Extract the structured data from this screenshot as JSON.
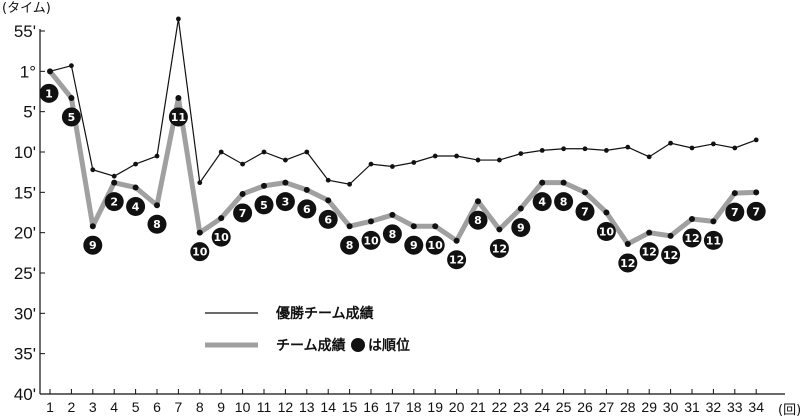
{
  "chart_data": {
    "type": "line",
    "ylabel": "(タイム)",
    "xlabel": "(回)",
    "x": [
      1,
      2,
      3,
      4,
      5,
      6,
      7,
      8,
      9,
      10,
      11,
      12,
      13,
      14,
      15,
      16,
      17,
      18,
      19,
      20,
      21,
      22,
      23,
      24,
      25,
      26,
      27,
      28,
      29,
      30,
      31,
      32,
      33,
      34
    ],
    "xtick_labels": [
      "1",
      "2",
      "3",
      "4",
      "5",
      "6",
      "7",
      "8",
      "9",
      "10",
      "11",
      "12",
      "13",
      "14",
      "15",
      "16",
      "17",
      "18",
      "19",
      "20",
      "21",
      "22",
      "23",
      "24",
      "25",
      "26",
      "27",
      "28",
      "29",
      "30",
      "31",
      "32",
      "33",
      "34"
    ],
    "ytick_labels": [
      "55'",
      "1°",
      "5'",
      "10'",
      "15'",
      "20'",
      "25'",
      "30'",
      "35'",
      "40'"
    ],
    "y_axis_note": "inverted time axis; values = minutes below the 55' line (0 = 55', 5 = 1°00', 10 = 1°05', ... 45 = 1°40')",
    "ylim": [
      0,
      45
    ],
    "series": [
      {
        "name": "優勝チーム成績",
        "color": "#111111",
        "style": "thin-line-with-dots",
        "values": [
          5.0,
          4.3,
          17.2,
          18.0,
          16.5,
          15.5,
          -1.5,
          18.8,
          15.0,
          16.5,
          15.0,
          16.0,
          15.0,
          18.5,
          19.0,
          16.5,
          16.8,
          16.3,
          15.5,
          15.5,
          16.0,
          16.0,
          15.2,
          14.8,
          14.6,
          14.6,
          14.8,
          14.4,
          15.6,
          13.9,
          14.5,
          14.0,
          14.5,
          13.5
        ]
      },
      {
        "name": "チーム成績",
        "color": "#a0a0a0",
        "style": "thick-line-with-rank-markers",
        "values": [
          5.0,
          8.3,
          24.2,
          18.8,
          19.4,
          21.6,
          8.3,
          25.0,
          23.2,
          20.2,
          19.2,
          18.8,
          19.7,
          21.0,
          24.2,
          23.6,
          22.8,
          24.2,
          24.2,
          26.0,
          21.1,
          24.6,
          22.0,
          18.8,
          18.8,
          20.0,
          22.5,
          26.4,
          25.0,
          25.4,
          23.3,
          23.6,
          20.1,
          20.0
        ]
      }
    ],
    "ranks": [
      "1",
      "5",
      "9",
      "2",
      "4",
      "8",
      "11",
      "10",
      "10",
      "7",
      "5",
      "3",
      "6",
      "6",
      "8",
      "10",
      "8",
      "9",
      "10",
      "12",
      "8",
      "12",
      "9",
      "4",
      "8",
      "7",
      "10",
      "12",
      "12",
      "12",
      "12",
      "11",
      "7",
      "7"
    ],
    "legend": {
      "items": [
        {
          "label": "優勝チーム成績",
          "style": "thin"
        },
        {
          "label": "チーム成績",
          "style": "thick",
          "suffix": "は順位"
        }
      ],
      "placement": "center-left"
    },
    "grid": false
  }
}
